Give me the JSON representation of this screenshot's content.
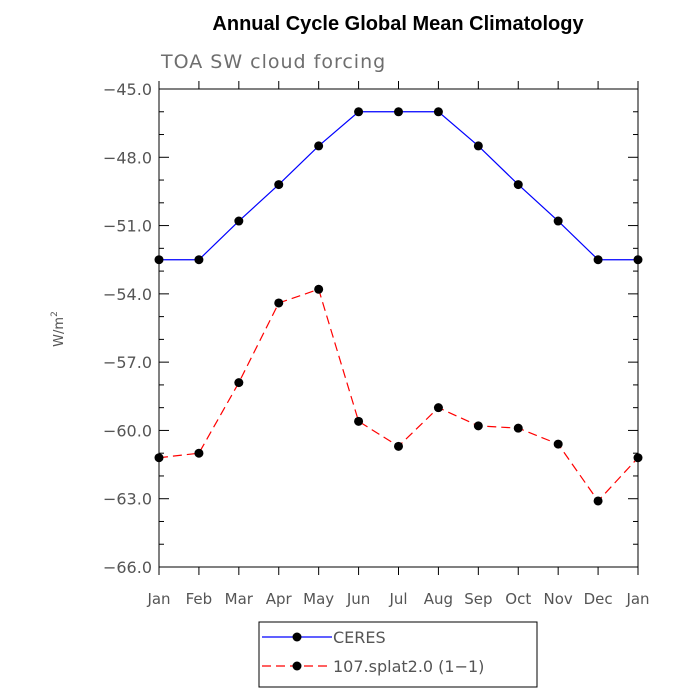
{
  "chart_data": {
    "type": "line",
    "title": "Annual Cycle Global Mean Climatology",
    "subtitle": "TOA SW cloud forcing",
    "ylabel_base": "W/m",
    "ylabel_exp": "2",
    "ylim": [
      -66.0,
      -45.0
    ],
    "yticks": [
      -45.0,
      -48.0,
      -51.0,
      -54.0,
      -57.0,
      -60.0,
      -63.0,
      -66.0
    ],
    "ytick_labels": [
      "−45.0",
      "−48.0",
      "−51.0",
      "−54.0",
      "−57.0",
      "−60.0",
      "−63.0",
      "−66.0"
    ],
    "categories": [
      "Jan",
      "Feb",
      "Mar",
      "Apr",
      "May",
      "Jun",
      "Jul",
      "Aug",
      "Sep",
      "Oct",
      "Nov",
      "Dec",
      "Jan"
    ],
    "series": [
      {
        "name": "CERES",
        "color": "#0000ff",
        "dash": "solid",
        "values": [
          -52.5,
          -52.5,
          -50.8,
          -49.2,
          -47.5,
          -46.0,
          -46.0,
          -46.0,
          -47.5,
          -49.2,
          -50.8,
          -52.5,
          -52.5
        ]
      },
      {
        "name": "107.splat2.0 (1−1)",
        "color": "#ff0000",
        "dash": "dashed",
        "values": [
          -61.2,
          -61.0,
          -57.9,
          -54.4,
          -53.8,
          -59.6,
          -60.7,
          -59.0,
          -59.8,
          -59.9,
          -60.6,
          -63.1,
          -61.2
        ]
      }
    ],
    "legend_position": "bottom-center",
    "grid": false
  }
}
